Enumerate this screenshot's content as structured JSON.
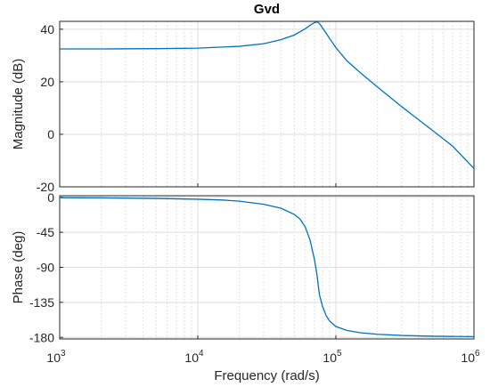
{
  "chart_data": [
    {
      "type": "line",
      "title": "Gvd",
      "xlabel": "",
      "ylabel": "Magnitude (dB)",
      "xscale": "log",
      "xlim": [
        1000,
        1000000
      ],
      "ylim": [
        -20,
        43
      ],
      "yticks": [
        {
          "v": 40,
          "label": "40"
        },
        {
          "v": 20,
          "label": "20"
        },
        {
          "v": 0,
          "label": "0"
        },
        {
          "v": -20,
          "label": "-20"
        }
      ],
      "grid": true,
      "line_color": "#0072bd",
      "series": [
        {
          "x": [
            1000,
            2000,
            5000,
            10000,
            20000,
            30000,
            40000,
            50000,
            60000,
            65000,
            70000,
            73000,
            76000,
            80000,
            85000,
            90000,
            100000,
            120000,
            150000,
            200000,
            300000,
            500000,
            700000,
            1000000
          ],
          "values": [
            32.5,
            32.5,
            32.6,
            32.8,
            33.5,
            34.5,
            36.0,
            37.8,
            40.2,
            41.5,
            42.5,
            42.8,
            42.2,
            40.5,
            38.5,
            36.5,
            33.0,
            28.0,
            23.5,
            18.0,
            10.5,
            1.5,
            -4.5,
            -13.0
          ]
        }
      ]
    },
    {
      "type": "line",
      "title": "",
      "xlabel": "Frequency  (rad/s)",
      "ylabel": "Phase (deg)",
      "xscale": "log",
      "xlim": [
        1000,
        1000000
      ],
      "ylim": [
        -182,
        2
      ],
      "yticks": [
        {
          "v": 0,
          "label": "0"
        },
        {
          "v": -45,
          "label": "-45"
        },
        {
          "v": -90,
          "label": "-90"
        },
        {
          "v": -135,
          "label": "-135"
        },
        {
          "v": -180,
          "label": "-180"
        }
      ],
      "xticks": [
        {
          "v": 1000,
          "base": "10",
          "exp": "3"
        },
        {
          "v": 10000,
          "base": "10",
          "exp": "4"
        },
        {
          "v": 100000,
          "base": "10",
          "exp": "5"
        },
        {
          "v": 1000000,
          "base": "10",
          "exp": "6"
        }
      ],
      "grid": true,
      "line_color": "#0072bd",
      "series": [
        {
          "x": [
            1000,
            2000,
            5000,
            10000,
            15000,
            20000,
            30000,
            40000,
            50000,
            55000,
            60000,
            65000,
            70000,
            73000,
            76000,
            80000,
            85000,
            90000,
            100000,
            120000,
            150000,
            200000,
            300000,
            500000,
            1000000
          ],
          "values": [
            -0.5,
            -0.8,
            -1.5,
            -2.5,
            -3.5,
            -5.0,
            -9.0,
            -14.0,
            -22.0,
            -28.0,
            -38.0,
            -55.0,
            -80.0,
            -100.0,
            -125.0,
            -140.0,
            -152.0,
            -159.0,
            -166.0,
            -171.0,
            -174.0,
            -176.0,
            -177.5,
            -178.5,
            -179.0
          ]
        }
      ]
    }
  ]
}
